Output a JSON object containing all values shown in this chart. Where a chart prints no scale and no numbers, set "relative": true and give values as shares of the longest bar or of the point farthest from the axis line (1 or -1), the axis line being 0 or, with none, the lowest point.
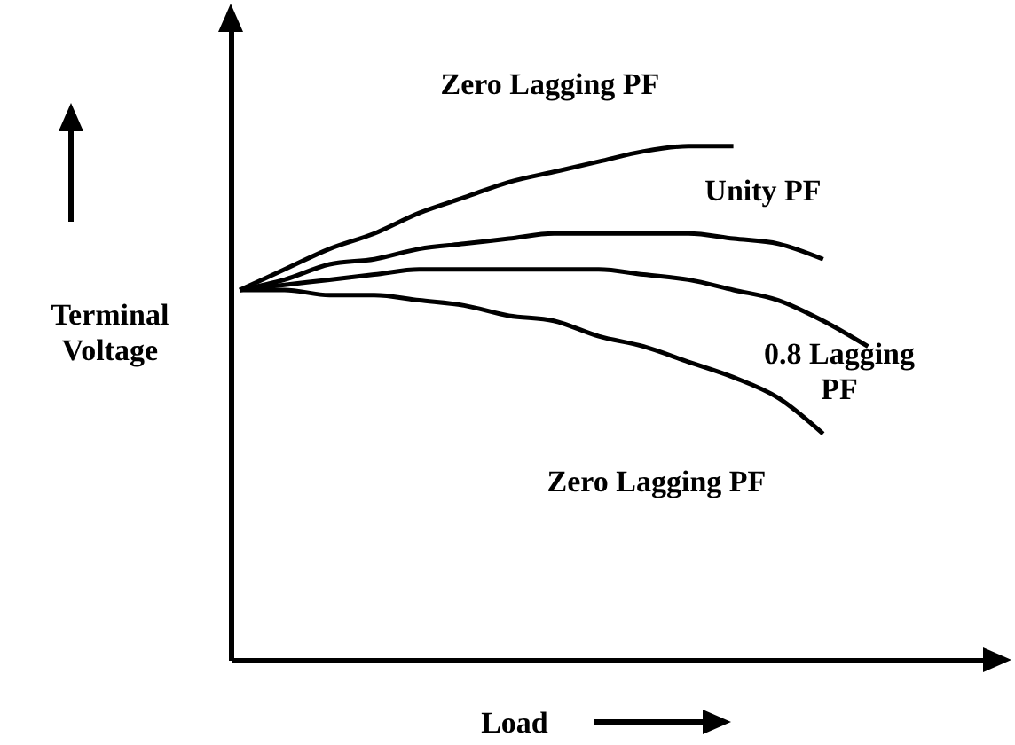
{
  "chart_data": {
    "type": "line",
    "relative": true,
    "xlabel": "Load",
    "ylabel": "Terminal Voltage",
    "categories": [
      null,
      null,
      null,
      null,
      null,
      null,
      null,
      null,
      null,
      null,
      null,
      null,
      null,
      null,
      null
    ],
    "series": [
      {
        "name": "Zero Lagging PF",
        "color": "#000000",
        "values": [
          0.72,
          0.76,
          0.8,
          0.83,
          0.87,
          0.9,
          0.93,
          0.95,
          0.97,
          0.99,
          1.0,
          1.0,
          null,
          null,
          null
        ]
      },
      {
        "name": "Unity PF",
        "color": "#000000",
        "values": [
          0.72,
          0.74,
          0.77,
          0.78,
          0.8,
          0.81,
          0.82,
          0.83,
          0.83,
          0.83,
          0.83,
          0.82,
          0.81,
          0.78,
          null
        ]
      },
      {
        "name": "0.8 Lagging PF",
        "color": "#000000",
        "values": [
          0.72,
          0.73,
          0.74,
          0.75,
          0.76,
          0.76,
          0.76,
          0.76,
          0.76,
          0.75,
          0.74,
          0.72,
          0.7,
          0.66,
          0.61
        ]
      },
      {
        "name": "Zero Lagging PF",
        "color": "#000000",
        "values": [
          0.72,
          0.72,
          0.71,
          0.71,
          0.7,
          0.69,
          0.67,
          0.66,
          0.63,
          0.61,
          0.58,
          0.55,
          0.51,
          0.44,
          null
        ]
      }
    ],
    "grid": false
  }
}
